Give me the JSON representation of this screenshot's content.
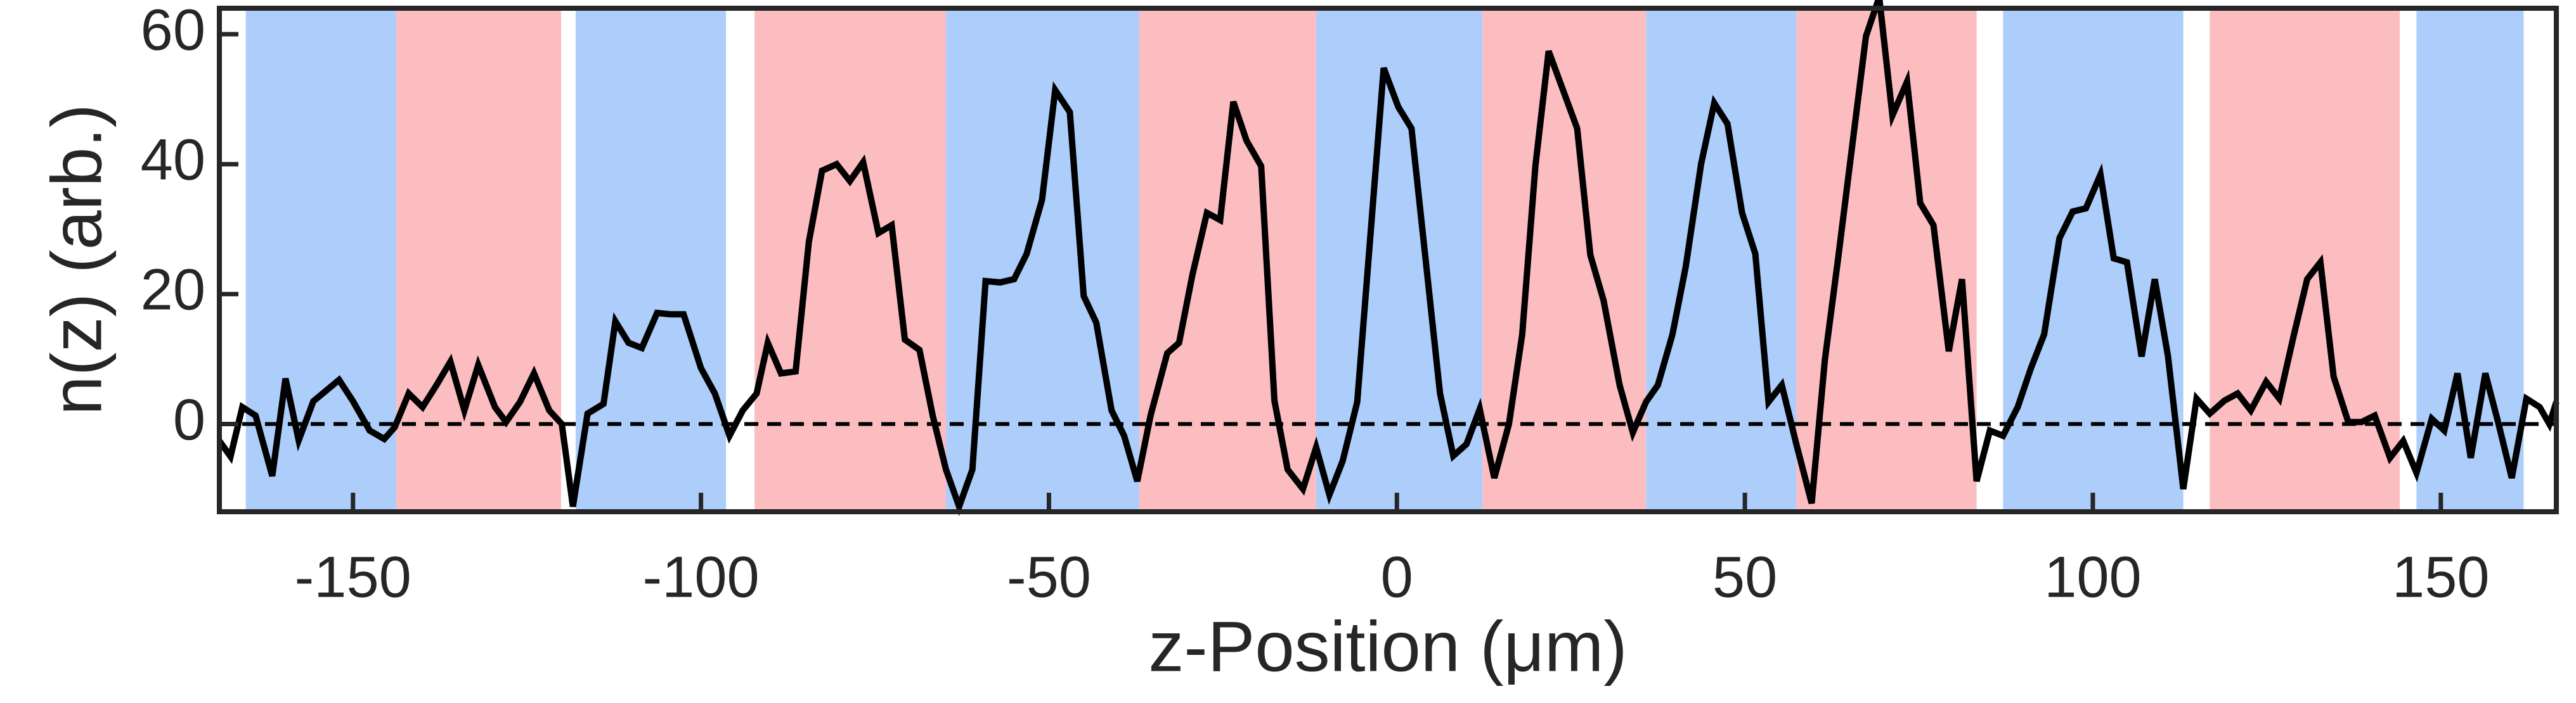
{
  "chart_data": {
    "type": "line",
    "xlabel": "z-Position (μm)",
    "ylabel": "n(z) (arb.)",
    "xlim": [
      -169.2,
      166.6
    ],
    "ylim": [
      -13.5,
      64
    ],
    "xticks": [
      -150,
      -100,
      -50,
      0,
      50,
      100,
      150
    ],
    "yticks": [
      0,
      20,
      40,
      60
    ],
    "zero_line": true,
    "color": "#000000",
    "bands": [
      {
        "start": -165.4,
        "end": -143.8,
        "color": "#adcdfb"
      },
      {
        "start": -143.8,
        "end": -120.1,
        "color": "#fcbdc0"
      },
      {
        "start": -118,
        "end": -96.4,
        "color": "#adcdfb"
      },
      {
        "start": -92.3,
        "end": -64.8,
        "color": "#fcbdc0"
      },
      {
        "start": -64.8,
        "end": -37,
        "color": "#adcdfb"
      },
      {
        "start": -37,
        "end": -11.6,
        "color": "#fcbdc0"
      },
      {
        "start": -11.6,
        "end": 12.3,
        "color": "#adcdfb"
      },
      {
        "start": 12.3,
        "end": 35.8,
        "color": "#fcbdc0"
      },
      {
        "start": 35.8,
        "end": 57.4,
        "color": "#adcdfb"
      },
      {
        "start": 57.4,
        "end": 83.3,
        "color": "#fcbdc0"
      },
      {
        "start": 87.1,
        "end": 113,
        "color": "#adcdfb"
      },
      {
        "start": 116.8,
        "end": 144.1,
        "color": "#fcbdc0"
      },
      {
        "start": 146.5,
        "end": 161.9,
        "color": "#adcdfb"
      }
    ],
    "x": [
      -169.2,
      -167.6,
      -165.9,
      -164,
      -161.6,
      -159.7,
      -157.8,
      -155.7,
      -152,
      -150,
      -147.6,
      -145.5,
      -144,
      -142,
      -140,
      -138,
      -136,
      -134,
      -132,
      -129.6,
      -128,
      -126,
      -124,
      -121.8,
      -120,
      -118.4,
      -116.3,
      -114,
      -112.3,
      -110.4,
      -108.5,
      -106.3,
      -104.4,
      -102.5,
      -100,
      -98,
      -95.9,
      -94,
      -92,
      -90.4,
      -88.5,
      -86.4,
      -84.5,
      -82.6,
      -80.5,
      -78.6,
      -76.7,
      -74.5,
      -72.6,
      -70.7,
      -68.6,
      -66.7,
      -64.8,
      -62.9,
      -61,
      -59.1,
      -57,
      -55,
      -53.2,
      -51,
      -49.1,
      -47,
      -45,
      -43.2,
      -41,
      -39.2,
      -37.3,
      -35.4,
      -33,
      -31.3,
      -29.4,
      -27.3,
      -25.4,
      -23.5,
      -21.6,
      -19.5,
      -17.6,
      -15.7,
      -13.5,
      -11.6,
      -9.7,
      -7.8,
      -5.7,
      -1.9,
      0.2,
      2.1,
      6.2,
      8.1,
      10,
      11.9,
      14,
      16.1,
      18,
      19.9,
      21.8,
      25.9,
      27.8,
      29.7,
      32,
      33.9,
      35.8,
      37.5,
      39.6,
      41.5,
      43.7,
      45.6,
      47.5,
      49.6,
      51.5,
      53.4,
      55.3,
      57.4,
      59.6,
      61.5,
      63.4,
      65.3,
      67.4,
      69.3,
      71.2,
      73.3,
      75.2,
      77.1,
      79.3,
      81.2,
      83.3,
      85.2,
      87.1,
      89.2,
      91.1,
      93,
      95.2,
      97.1,
      99,
      101.1,
      103,
      104.9,
      107,
      108.9,
      110.8,
      113,
      114.9,
      116.8,
      118.9,
      120.8,
      122.7,
      124.9,
      126.8,
      128.9,
      130.8,
      132.7,
      134.6,
      136.7,
      138.6,
      140.5,
      142.7,
      144.6,
      146.5,
      148.7,
      150.5,
      152.4,
      154.3,
      156.4,
      158.3,
      160.2,
      162.3,
      164.2,
      165.6,
      166.6
    ],
    "values": [
      -2.6,
      -5,
      2.6,
      1.3,
      -8,
      7,
      -2.5,
      3.5,
      6.8,
      3.5,
      -1,
      -2.3,
      -0.5,
      4.7,
      2.6,
      6,
      9.6,
      2.1,
      9.1,
      2.6,
      0.3,
      3.4,
      7.8,
      2.1,
      0,
      -12.7,
      1.6,
      3.1,
      15.8,
      12.5,
      11.7,
      17.1,
      16.9,
      16.9,
      8.6,
      4.7,
      -1.8,
      2.1,
      4.7,
      12.5,
      7.8,
      8.1,
      28,
      39,
      40,
      37.4,
      40.3,
      29.4,
      30.6,
      13,
      11.4,
      1.3,
      -7,
      -12.7,
      -7,
      22,
      21.8,
      22.3,
      26.2,
      34.5,
      51.4,
      48,
      19.7,
      15.6,
      2.1,
      -1.8,
      -8.8,
      1.3,
      10.9,
      12.5,
      22.9,
      32.5,
      31.4,
      49.6,
      43.6,
      39.7,
      3.6,
      -7,
      -10,
      -3.6,
      -10.9,
      -5.7,
      3.4,
      54.8,
      48.8,
      45.5,
      4.7,
      -4.9,
      -3.1,
      2.3,
      -8.3,
      0,
      13.8,
      39.7,
      57.4,
      45.5,
      26,
      19,
      6,
      -1.3,
      3.4,
      6,
      13.8,
      24.2,
      40,
      49.4,
      46.2,
      32.5,
      26.2,
      3.4,
      6,
      -3.1,
      -12.2,
      9.9,
      25.5,
      41.8,
      59.7,
      65.7,
      47.5,
      52.7,
      34,
      30.6,
      11.2,
      22.3,
      -8.8,
      -1,
      -1.8,
      2.6,
      8.6,
      13.8,
      28.6,
      32.7,
      33.2,
      38.4,
      25.5,
      24.9,
      10.4,
      22.3,
      10.4,
      -10,
      3.9,
      1.6,
      3.6,
      4.7,
      2.1,
      6.5,
      3.9,
      13.8,
      22.3,
      24.9,
      7.3,
      0.3,
      0.3,
      1.3,
      -5.2,
      -2.6,
      -7.5,
      0.8,
      -1,
      7.8,
      -5.2,
      7.8,
      0,
      -8.3,
      3.9,
      2.6,
      0,
      3.4
    ]
  }
}
